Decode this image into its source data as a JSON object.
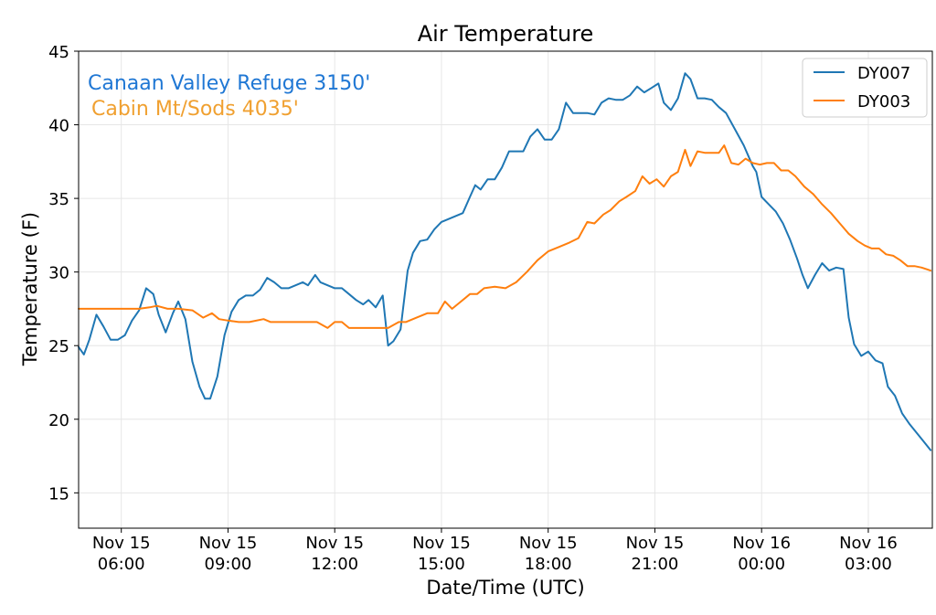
{
  "chart_data": {
    "type": "line",
    "title": "Air Temperature",
    "xlabel": "Date/Time (UTC)",
    "ylabel": "Temperature (F)",
    "ylim": [
      12.6,
      45
    ],
    "xlim_hours_from_nov15_0000": [
      4.8,
      28.8
    ],
    "grid": true,
    "legend_position": "top-right",
    "yticks": [
      15,
      20,
      25,
      30,
      35,
      40,
      45
    ],
    "xticks": [
      {
        "hour": 6,
        "line1": "Nov 15",
        "line2": "06:00"
      },
      {
        "hour": 9,
        "line1": "Nov 15",
        "line2": "09:00"
      },
      {
        "hour": 12,
        "line1": "Nov 15",
        "line2": "12:00"
      },
      {
        "hour": 15,
        "line1": "Nov 15",
        "line2": "15:00"
      },
      {
        "hour": 18,
        "line1": "Nov 15",
        "line2": "18:00"
      },
      {
        "hour": 21,
        "line1": "Nov 15",
        "line2": "21:00"
      },
      {
        "hour": 24,
        "line1": "Nov 16",
        "line2": "00:00"
      },
      {
        "hour": 27,
        "line1": "Nov 16",
        "line2": "03:00"
      }
    ],
    "annotations": [
      {
        "text": "Canaan Valley Refuge 3150'",
        "color": "#1f77d4"
      },
      {
        "text": "Cabin Mt/Sods 4035'",
        "color": "#f0a030"
      }
    ],
    "series": [
      {
        "name": "DY007",
        "color": "#1f77b4",
        "points": [
          [
            4.8,
            24.9
          ],
          [
            4.95,
            24.4
          ],
          [
            5.1,
            25.4
          ],
          [
            5.3,
            27.1
          ],
          [
            5.5,
            26.3
          ],
          [
            5.7,
            25.4
          ],
          [
            5.9,
            25.4
          ],
          [
            6.1,
            25.7
          ],
          [
            6.3,
            26.7
          ],
          [
            6.5,
            27.4
          ],
          [
            6.7,
            28.9
          ],
          [
            6.9,
            28.5
          ],
          [
            7.05,
            27.1
          ],
          [
            7.25,
            25.9
          ],
          [
            7.45,
            27.2
          ],
          [
            7.6,
            28.0
          ],
          [
            7.8,
            26.8
          ],
          [
            8.0,
            23.9
          ],
          [
            8.2,
            22.2
          ],
          [
            8.35,
            21.4
          ],
          [
            8.5,
            21.4
          ],
          [
            8.7,
            22.9
          ],
          [
            8.9,
            25.7
          ],
          [
            9.1,
            27.3
          ],
          [
            9.3,
            28.1
          ],
          [
            9.5,
            28.4
          ],
          [
            9.7,
            28.4
          ],
          [
            9.9,
            28.8
          ],
          [
            10.1,
            29.6
          ],
          [
            10.3,
            29.3
          ],
          [
            10.5,
            28.9
          ],
          [
            10.7,
            28.9
          ],
          [
            10.9,
            29.1
          ],
          [
            11.1,
            29.3
          ],
          [
            11.25,
            29.1
          ],
          [
            11.45,
            29.8
          ],
          [
            11.6,
            29.3
          ],
          [
            11.8,
            29.1
          ],
          [
            12.0,
            28.9
          ],
          [
            12.2,
            28.9
          ],
          [
            12.4,
            28.5
          ],
          [
            12.6,
            28.1
          ],
          [
            12.8,
            27.8
          ],
          [
            12.95,
            28.1
          ],
          [
            13.15,
            27.6
          ],
          [
            13.35,
            28.4
          ],
          [
            13.5,
            25.0
          ],
          [
            13.65,
            25.3
          ],
          [
            13.85,
            26.1
          ],
          [
            14.05,
            30.1
          ],
          [
            14.2,
            31.3
          ],
          [
            14.4,
            32.1
          ],
          [
            14.6,
            32.2
          ],
          [
            14.8,
            32.9
          ],
          [
            15.0,
            33.4
          ],
          [
            15.2,
            33.6
          ],
          [
            15.4,
            33.8
          ],
          [
            15.6,
            34.0
          ],
          [
            15.8,
            35.1
          ],
          [
            15.95,
            35.9
          ],
          [
            16.1,
            35.6
          ],
          [
            16.3,
            36.3
          ],
          [
            16.5,
            36.3
          ],
          [
            16.7,
            37.1
          ],
          [
            16.9,
            38.2
          ],
          [
            17.1,
            38.2
          ],
          [
            17.3,
            38.2
          ],
          [
            17.5,
            39.2
          ],
          [
            17.7,
            39.7
          ],
          [
            17.9,
            39.0
          ],
          [
            18.1,
            39.0
          ],
          [
            18.3,
            39.7
          ],
          [
            18.5,
            41.5
          ],
          [
            18.7,
            40.8
          ],
          [
            18.9,
            40.8
          ],
          [
            19.1,
            40.8
          ],
          [
            19.3,
            40.7
          ],
          [
            19.5,
            41.5
          ],
          [
            19.7,
            41.8
          ],
          [
            19.9,
            41.7
          ],
          [
            20.1,
            41.7
          ],
          [
            20.3,
            42.0
          ],
          [
            20.5,
            42.6
          ],
          [
            20.7,
            42.2
          ],
          [
            20.9,
            42.5
          ],
          [
            21.1,
            42.8
          ],
          [
            21.25,
            41.5
          ],
          [
            21.45,
            41.0
          ],
          [
            21.65,
            41.8
          ],
          [
            21.85,
            43.5
          ],
          [
            22.0,
            43.1
          ],
          [
            22.2,
            41.8
          ],
          [
            22.4,
            41.8
          ],
          [
            22.6,
            41.7
          ],
          [
            22.8,
            41.2
          ],
          [
            23.0,
            40.8
          ],
          [
            23.25,
            39.7
          ],
          [
            23.5,
            38.6
          ],
          [
            23.75,
            37.2
          ],
          [
            23.85,
            36.8
          ],
          [
            24.0,
            35.1
          ],
          [
            24.2,
            34.6
          ],
          [
            24.4,
            34.1
          ],
          [
            24.6,
            33.3
          ],
          [
            24.8,
            32.2
          ],
          [
            25.0,
            30.9
          ],
          [
            25.15,
            29.8
          ],
          [
            25.3,
            28.9
          ],
          [
            25.5,
            29.8
          ],
          [
            25.7,
            30.6
          ],
          [
            25.9,
            30.1
          ],
          [
            26.1,
            30.3
          ],
          [
            26.3,
            30.2
          ],
          [
            26.45,
            26.9
          ],
          [
            26.6,
            25.1
          ],
          [
            26.8,
            24.3
          ],
          [
            27.0,
            24.6
          ],
          [
            27.2,
            24.0
          ],
          [
            27.4,
            23.8
          ],
          [
            27.55,
            22.2
          ],
          [
            27.75,
            21.6
          ],
          [
            27.95,
            20.4
          ],
          [
            28.15,
            19.7
          ],
          [
            28.35,
            19.1
          ],
          [
            28.55,
            18.5
          ],
          [
            28.75,
            17.9
          ]
        ]
      },
      {
        "name": "DY003",
        "color": "#ff7f0e",
        "points": [
          [
            4.8,
            27.5
          ],
          [
            5.0,
            27.5
          ],
          [
            5.5,
            27.5
          ],
          [
            6.0,
            27.5
          ],
          [
            6.5,
            27.5
          ],
          [
            6.8,
            27.6
          ],
          [
            7.0,
            27.7
          ],
          [
            7.3,
            27.5
          ],
          [
            7.6,
            27.5
          ],
          [
            8.0,
            27.4
          ],
          [
            8.3,
            26.9
          ],
          [
            8.55,
            27.2
          ],
          [
            8.75,
            26.8
          ],
          [
            9.0,
            26.7
          ],
          [
            9.3,
            26.6
          ],
          [
            9.6,
            26.6
          ],
          [
            10.0,
            26.8
          ],
          [
            10.2,
            26.6
          ],
          [
            10.6,
            26.6
          ],
          [
            11.0,
            26.6
          ],
          [
            11.5,
            26.6
          ],
          [
            11.8,
            26.2
          ],
          [
            12.0,
            26.6
          ],
          [
            12.2,
            26.6
          ],
          [
            12.4,
            26.2
          ],
          [
            12.8,
            26.2
          ],
          [
            13.2,
            26.2
          ],
          [
            13.5,
            26.2
          ],
          [
            13.8,
            26.6
          ],
          [
            14.0,
            26.6
          ],
          [
            14.3,
            26.9
          ],
          [
            14.6,
            27.2
          ],
          [
            14.9,
            27.2
          ],
          [
            15.1,
            28.0
          ],
          [
            15.3,
            27.5
          ],
          [
            15.55,
            28.0
          ],
          [
            15.8,
            28.5
          ],
          [
            16.0,
            28.5
          ],
          [
            16.2,
            28.9
          ],
          [
            16.5,
            29.0
          ],
          [
            16.8,
            28.9
          ],
          [
            17.1,
            29.3
          ],
          [
            17.4,
            30.0
          ],
          [
            17.7,
            30.8
          ],
          [
            18.0,
            31.4
          ],
          [
            18.3,
            31.7
          ],
          [
            18.6,
            32.0
          ],
          [
            18.85,
            32.3
          ],
          [
            19.1,
            33.4
          ],
          [
            19.3,
            33.3
          ],
          [
            19.55,
            33.9
          ],
          [
            19.75,
            34.2
          ],
          [
            20.0,
            34.8
          ],
          [
            20.2,
            35.1
          ],
          [
            20.45,
            35.5
          ],
          [
            20.65,
            36.5
          ],
          [
            20.85,
            36.0
          ],
          [
            21.05,
            36.3
          ],
          [
            21.25,
            35.8
          ],
          [
            21.45,
            36.5
          ],
          [
            21.65,
            36.8
          ],
          [
            21.85,
            38.3
          ],
          [
            22.0,
            37.2
          ],
          [
            22.2,
            38.2
          ],
          [
            22.4,
            38.1
          ],
          [
            22.6,
            38.1
          ],
          [
            22.8,
            38.1
          ],
          [
            22.95,
            38.6
          ],
          [
            23.15,
            37.4
          ],
          [
            23.35,
            37.3
          ],
          [
            23.55,
            37.7
          ],
          [
            23.75,
            37.4
          ],
          [
            23.95,
            37.3
          ],
          [
            24.15,
            37.4
          ],
          [
            24.35,
            37.4
          ],
          [
            24.55,
            36.9
          ],
          [
            24.75,
            36.9
          ],
          [
            24.95,
            36.5
          ],
          [
            25.2,
            35.8
          ],
          [
            25.45,
            35.3
          ],
          [
            25.7,
            34.6
          ],
          [
            25.95,
            34.0
          ],
          [
            26.2,
            33.3
          ],
          [
            26.45,
            32.6
          ],
          [
            26.7,
            32.1
          ],
          [
            26.9,
            31.8
          ],
          [
            27.1,
            31.6
          ],
          [
            27.3,
            31.6
          ],
          [
            27.5,
            31.2
          ],
          [
            27.7,
            31.1
          ],
          [
            27.9,
            30.8
          ],
          [
            28.1,
            30.4
          ],
          [
            28.3,
            30.4
          ],
          [
            28.5,
            30.3
          ],
          [
            28.75,
            30.1
          ]
        ]
      }
    ]
  }
}
